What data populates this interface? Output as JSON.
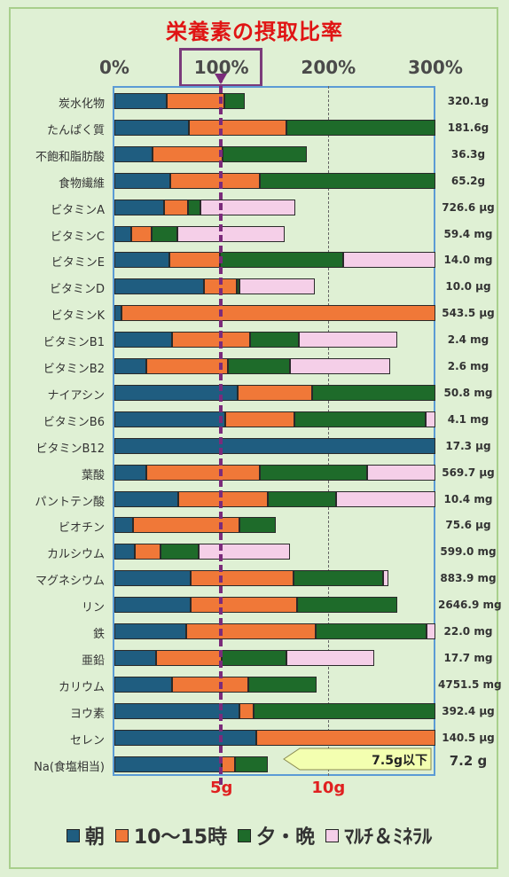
{
  "chart_data": {
    "type": "bar",
    "stacked": true,
    "orientation": "horizontal",
    "title": "栄養素の摂取比率",
    "x_ticks": [
      "0%",
      "100%",
      "200%",
      "300%"
    ],
    "xlim": [
      0,
      300
    ],
    "series": [
      {
        "name": "朝",
        "color": "#1f5d80"
      },
      {
        "name": "10～15時",
        "color": "#f07838"
      },
      {
        "name": "夕・晩",
        "color": "#1e6b2a"
      },
      {
        "name": "ﾏﾙﾁ＆ﾐﾈﾗﾙ",
        "color": "#f5cfe8"
      }
    ],
    "rows": [
      {
        "label": "炭水化物",
        "amount": "320.1g",
        "values": [
          49,
          54,
          19,
          0
        ]
      },
      {
        "label": "たんぱく質",
        "amount": "181.6g",
        "values": [
          70,
          91,
          139,
          0
        ]
      },
      {
        "label": "不飽和脂肪酸",
        "amount": "36.3g",
        "values": [
          36,
          65,
          79,
          0
        ]
      },
      {
        "label": "食物繊維",
        "amount": "65.2g",
        "values": [
          52,
          84,
          164,
          0
        ]
      },
      {
        "label": "ビタミンA",
        "amount": "726.6 μg",
        "values": [
          46,
          23,
          11,
          89
        ]
      },
      {
        "label": "ビタミンC",
        "amount": "59.4 mg",
        "values": [
          16,
          19,
          24,
          100
        ]
      },
      {
        "label": "ビタミンE",
        "amount": "14.0 mg",
        "values": [
          51,
          48,
          115,
          86
        ]
      },
      {
        "label": "ビタミンD",
        "amount": "10.0 μg",
        "values": [
          84,
          30,
          3,
          70
        ]
      },
      {
        "label": "ビタミンK",
        "amount": "543.5 μg",
        "values": [
          7,
          293,
          0,
          0
        ]
      },
      {
        "label": "ビタミンB1",
        "amount": "2.4 mg",
        "values": [
          54,
          73,
          45,
          92
        ]
      },
      {
        "label": "ビタミンB2",
        "amount": "2.6 mg",
        "values": [
          30,
          76,
          58,
          94
        ]
      },
      {
        "label": "ナイアシン",
        "amount": "50.8 mg",
        "values": [
          115,
          70,
          115,
          0
        ]
      },
      {
        "label": "ビタミンB6",
        "amount": "4.1 mg",
        "values": [
          104,
          64,
          123,
          9
        ]
      },
      {
        "label": "ビタミンB12",
        "amount": "17.3 μg",
        "values": [
          300,
          0,
          0,
          0
        ]
      },
      {
        "label": "葉酸",
        "amount": "569.7 μg",
        "values": [
          30,
          106,
          100,
          64
        ]
      },
      {
        "label": "パントテン酸",
        "amount": "10.4 mg",
        "values": [
          60,
          83,
          64,
          93
        ]
      },
      {
        "label": "ビオチン",
        "amount": "75.6 μg",
        "values": [
          17,
          100,
          34,
          0
        ]
      },
      {
        "label": "カルシウム",
        "amount": "599.0 mg",
        "values": [
          19,
          24,
          36,
          85
        ]
      },
      {
        "label": "マグネシウム",
        "amount": "883.9 mg",
        "values": [
          71,
          96,
          84,
          5
        ]
      },
      {
        "label": "リン",
        "amount": "2646.9 mg",
        "values": [
          71,
          100,
          93,
          0
        ]
      },
      {
        "label": "鉄",
        "amount": "22.0 mg",
        "values": [
          67,
          121,
          104,
          8
        ]
      },
      {
        "label": "亜鉛",
        "amount": "17.7 mg",
        "values": [
          39,
          61,
          61,
          82
        ]
      },
      {
        "label": "カリウム",
        "amount": "4751.5 mg",
        "values": [
          54,
          71,
          64,
          0
        ]
      },
      {
        "label": "ヨウ素",
        "amount": "392.4 μg",
        "values": [
          117,
          13,
          170,
          0
        ]
      },
      {
        "label": "セレン",
        "amount": "140.5 μg",
        "values": [
          133,
          167,
          0,
          0
        ]
      }
    ],
    "sodium": {
      "label": "Na(食塩相当)",
      "amount": "7.2 g",
      "limit_text": "7.5g以下",
      "ticks": [
        "5g",
        "10g"
      ],
      "values": [
        100,
        13,
        30,
        0
      ]
    },
    "grid": true,
    "legend_position": "bottom"
  }
}
